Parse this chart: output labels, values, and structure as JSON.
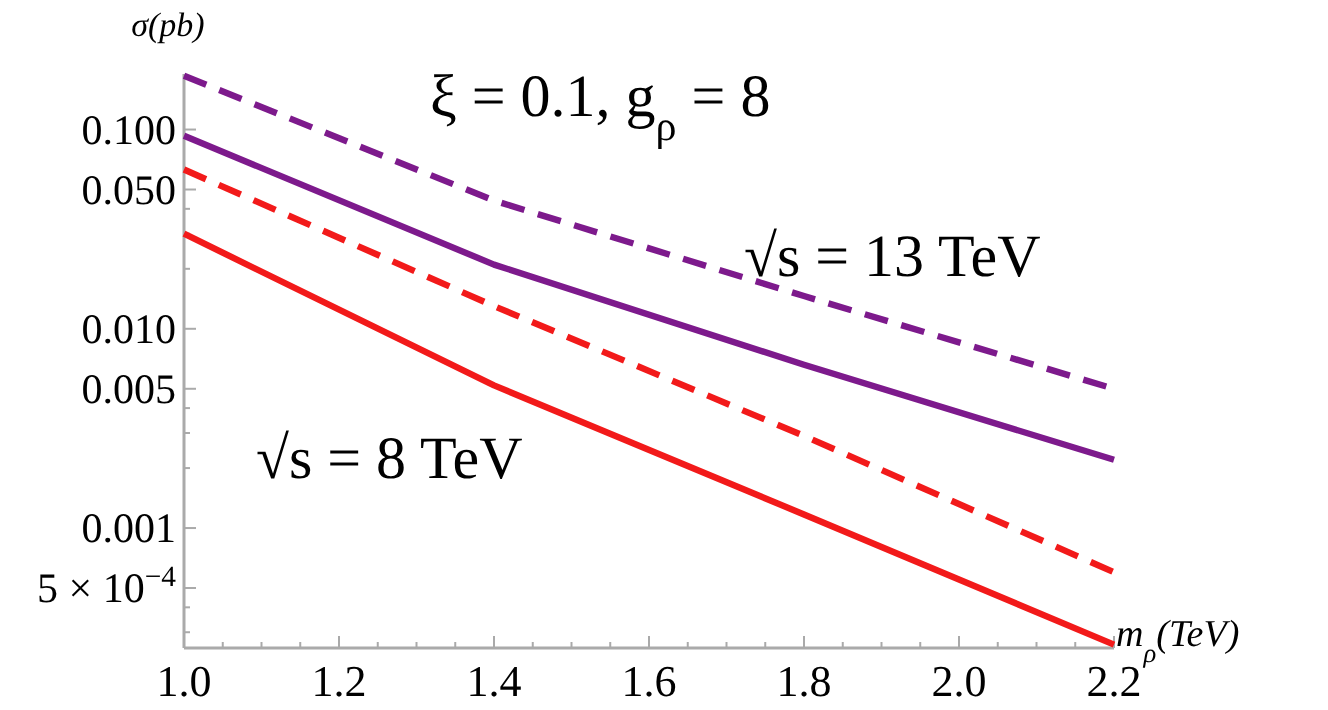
{
  "chart_data": {
    "type": "line",
    "ylabel": "σ(pb)",
    "xlabel": "m$_{ρ}$(TeV)",
    "log": "y",
    "x": [
      1.0,
      1.4,
      1.8,
      2.2
    ],
    "series": [
      {
        "color": "#7d1a8c",
        "line_style": "dashed",
        "values": [
          0.186,
          0.044,
          0.0146,
          0.005
        ]
      },
      {
        "color": "#7d1a8c",
        "line_style": "solid",
        "values": [
          0.093,
          0.021,
          0.0066,
          0.0022
        ]
      },
      {
        "color": "#f21a1a",
        "line_style": "dashed",
        "values": [
          0.063,
          0.013,
          0.0029,
          0.0006
        ]
      },
      {
        "color": "#f21a1a",
        "line_style": "solid",
        "values": [
          0.03,
          0.0052,
          0.00117,
          0.00026
        ]
      }
    ],
    "xlim": [
      1.0,
      2.2
    ],
    "ylim": [
      0.00025,
      0.19
    ],
    "xticks": [
      {
        "value": 1.0,
        "label": "1.0"
      },
      {
        "value": 1.05,
        "label": null
      },
      {
        "value": 1.1,
        "label": null
      },
      {
        "value": 1.15,
        "label": null
      },
      {
        "value": 1.2,
        "label": "1.2"
      },
      {
        "value": 1.25,
        "label": null
      },
      {
        "value": 1.3,
        "label": null
      },
      {
        "value": 1.35,
        "label": null
      },
      {
        "value": 1.4,
        "label": "1.4"
      },
      {
        "value": 1.45,
        "label": null
      },
      {
        "value": 1.5,
        "label": null
      },
      {
        "value": 1.55,
        "label": null
      },
      {
        "value": 1.6,
        "label": "1.6"
      },
      {
        "value": 1.65,
        "label": null
      },
      {
        "value": 1.7,
        "label": null
      },
      {
        "value": 1.75,
        "label": null
      },
      {
        "value": 1.8,
        "label": "1.8"
      },
      {
        "value": 1.85,
        "label": null
      },
      {
        "value": 1.9,
        "label": null
      },
      {
        "value": 1.95,
        "label": null
      },
      {
        "value": 2.0,
        "label": "2.0"
      },
      {
        "value": 2.05,
        "label": null
      },
      {
        "value": 2.1,
        "label": null
      },
      {
        "value": 2.15,
        "label": null
      },
      {
        "value": 2.2,
        "label": "2.2"
      }
    ],
    "yticks": [
      {
        "value": 0.0003,
        "label": null
      },
      {
        "value": 0.0004,
        "label": null
      },
      {
        "value": 0.0005,
        "label": "5 × 10$^{−4}$"
      },
      {
        "value": 0.001,
        "label": "0.001"
      },
      {
        "value": 0.002,
        "label": null
      },
      {
        "value": 0.003,
        "label": null
      },
      {
        "value": 0.004,
        "label": null
      },
      {
        "value": 0.005,
        "label": "0.005"
      },
      {
        "value": 0.01,
        "label": "0.010"
      },
      {
        "value": 0.02,
        "label": null
      },
      {
        "value": 0.03,
        "label": null
      },
      {
        "value": 0.04,
        "label": null
      },
      {
        "value": 0.05,
        "label": "0.050"
      },
      {
        "value": 0.1,
        "label": "0.100"
      }
    ],
    "annotations": [
      "ξ = 0.1,  g$_{ρ}$ = 8",
      "√s = 13 TeV",
      "√s = 8 TeV"
    ]
  }
}
